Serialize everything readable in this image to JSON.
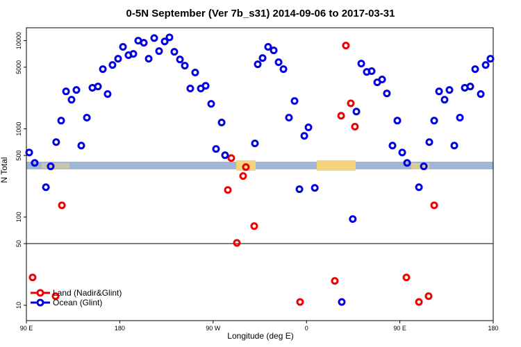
{
  "chart_data": {
    "type": "scatter",
    "title": "0-5N September (Ver 7b_s31)   2014-09-06 to 2017-03-31",
    "x_label": "Longitude (deg E)",
    "y_label": "N Total",
    "yscale": "log",
    "xlim": [
      90,
      540
    ],
    "ylim": [
      6.7,
      14000
    ],
    "xticks": [
      {
        "value": 90,
        "label": "90 E"
      },
      180,
      {
        "value": 270,
        "label": "90 W"
      },
      {
        "value": 360,
        "label": "0"
      },
      {
        "value": 450,
        "label": "90 E"
      },
      {
        "value": 540,
        "label": "180"
      }
    ],
    "yticks": [
      10,
      50,
      100,
      500,
      1000,
      5000,
      10000
    ],
    "hline": 50,
    "legend": "bottom left",
    "series": [
      {
        "name": "Land (Nadir&Glint)",
        "color": "#ee0000",
        "x": [
          96,
          118.1,
          124.2,
          284.2,
          287.5,
          292.9,
          298.9,
          301.6,
          309.6,
          353.8,
          387.3,
          393.4,
          398,
          402.7,
          406.7,
          456.3,
          468.4,
          477.7,
          483.1
        ],
        "values": [
          20.7,
          12.7,
          136,
          203,
          467,
          51,
          292,
          369,
          79,
          10.9,
          18.9,
          1410,
          8810,
          1950,
          1060,
          20.7,
          10.9,
          12.7,
          136
        ]
      },
      {
        "name": "Ocean (Glint)",
        "color": "#0000dd",
        "x": [
          92.7,
          98,
          108.8,
          113.4,
          118.7,
          123.5,
          128.2,
          133.5,
          138.2,
          142.9,
          148.3,
          153.6,
          159,
          163.7,
          168.3,
          173,
          178.4,
          183.1,
          188.4,
          193.1,
          197.8,
          203.2,
          207.9,
          213.2,
          217.9,
          223.3,
          227.9,
          232.6,
          238,
          242.7,
          248,
          252.7,
          258.1,
          262.8,
          268.1,
          272.8,
          278.2,
          281.5,
          310.3,
          313,
          317.7,
          323,
          328.4,
          333.1,
          337.8,
          343.1,
          348.5,
          353.2,
          357.9,
          361.9,
          368,
          394,
          404.6,
          408.1,
          412.8,
          418.1,
          422.8,
          428.2,
          432.9,
          437.5,
          442.9,
          447.6,
          452.3,
          457,
          468.4,
          473.1,
          478.4,
          483.1,
          487.8,
          493.1,
          497.8,
          502.5,
          507.9,
          512.6,
          517.9,
          522.6,
          528,
          532.7,
          537.3
        ],
        "values": [
          540,
          411,
          218,
          376,
          708,
          1240,
          2660,
          2140,
          2760,
          647,
          1340,
          2920,
          3020,
          4750,
          2480,
          5300,
          6240,
          8500,
          6840,
          7080,
          10000,
          9460,
          6240,
          10700,
          7620,
          9800,
          10900,
          7480,
          6120,
          5210,
          2870,
          4350,
          2870,
          3080,
          1920,
          592,
          1180,
          503,
          684,
          5400,
          6350,
          8500,
          7760,
          5700,
          4750,
          1340,
          2070,
          207,
          833,
          1040,
          214,
          10.9,
          95,
          1570,
          5500,
          4420,
          4510,
          3370,
          3630,
          2520,
          647,
          1240,
          540,
          411,
          218,
          376,
          708,
          1240,
          2660,
          2140,
          2760,
          647,
          1340,
          2920,
          3020,
          4750,
          2480,
          5300,
          6240
        ]
      }
    ]
  }
}
